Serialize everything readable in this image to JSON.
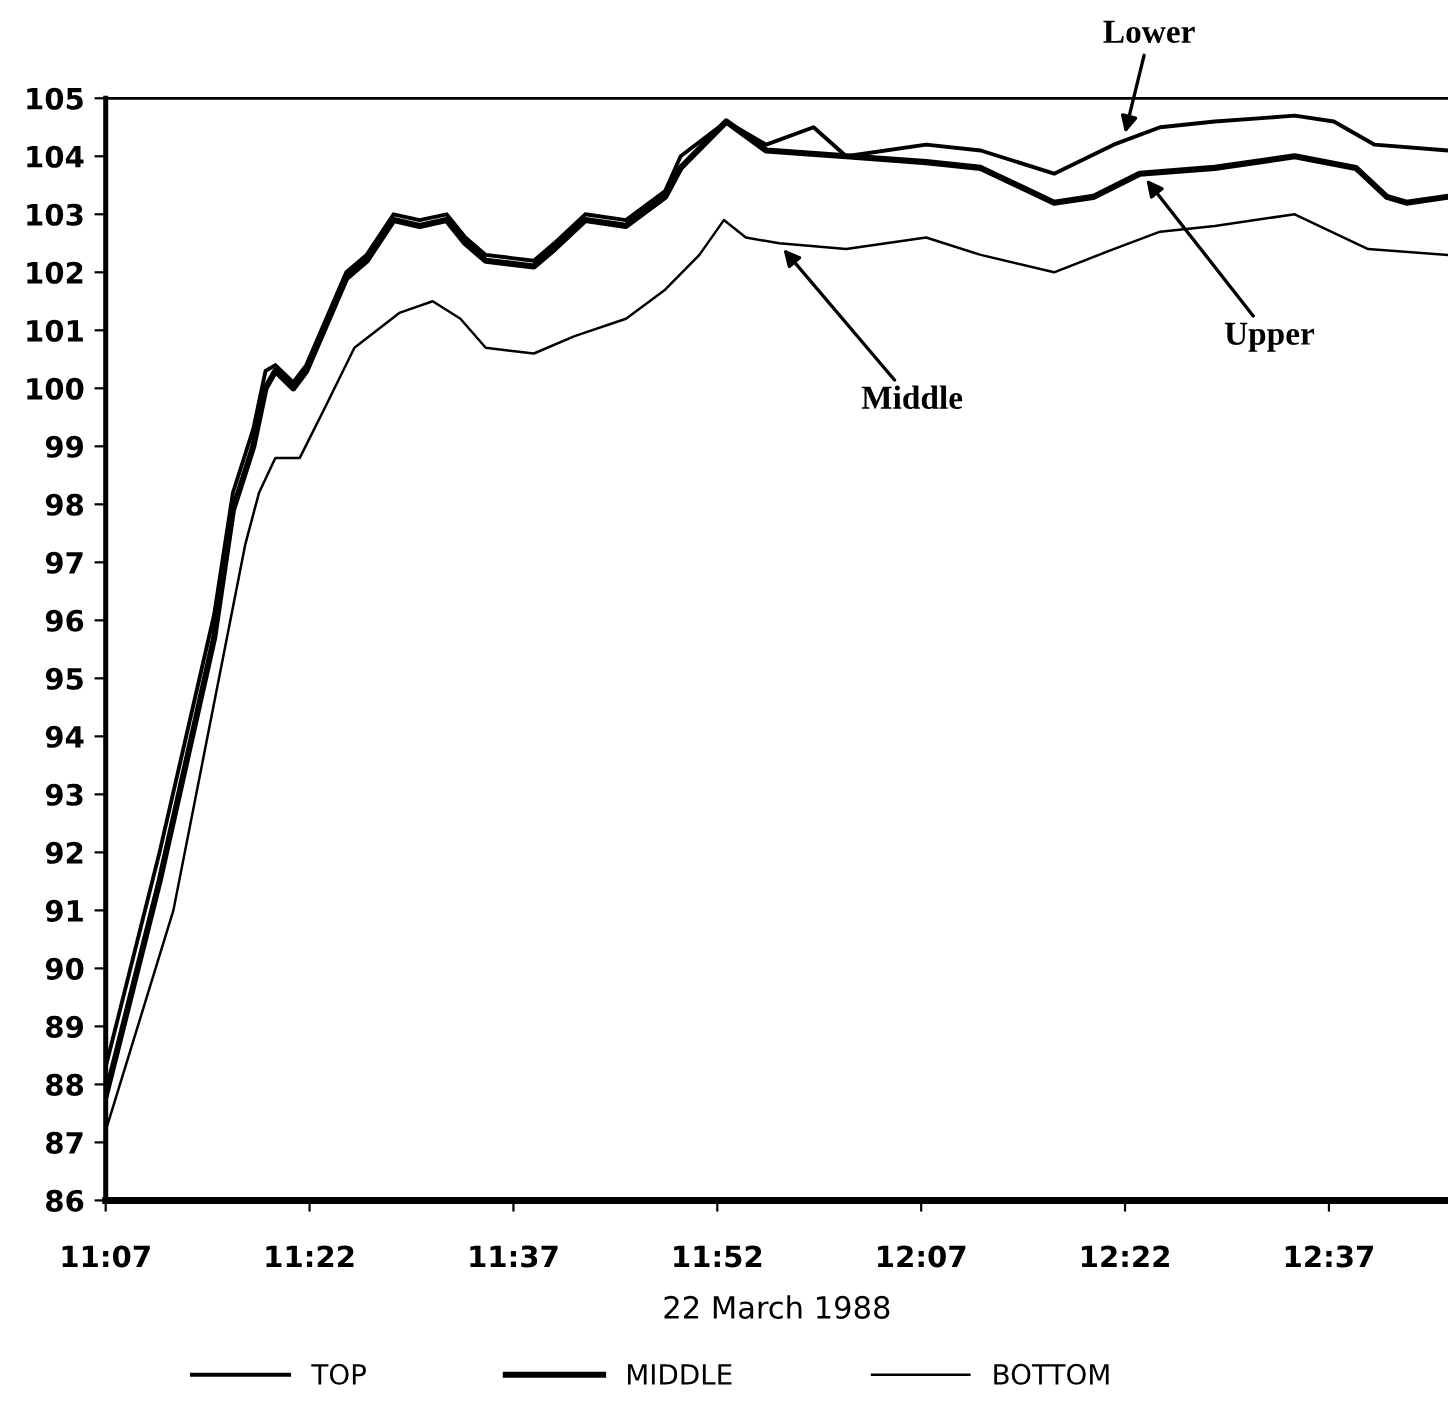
{
  "chart_data": {
    "type": "line",
    "xlabel": "22 March 1988",
    "xlim": [
      11.117,
      12.763
    ],
    "xticks": [
      {
        "value": 11.117,
        "label": "11:07"
      },
      {
        "value": 11.367,
        "label": "11:22"
      },
      {
        "value": 11.617,
        "label": "11:37"
      },
      {
        "value": 11.867,
        "label": "11:52"
      },
      {
        "value": 12.117,
        "label": "12:07"
      },
      {
        "value": 12.367,
        "label": "12:22"
      },
      {
        "value": 12.617,
        "label": "12:37"
      }
    ],
    "ylim": [
      86,
      105
    ],
    "yticks": [
      86,
      87,
      88,
      89,
      90,
      91,
      92,
      93,
      94,
      95,
      96,
      97,
      98,
      99,
      100,
      101,
      102,
      103,
      104,
      105
    ],
    "grid": false,
    "legend": "bottom",
    "marker": "none",
    "line_style": "solid",
    "series": [
      {
        "name": "TOP",
        "color": "#000000",
        "x": [
          11.117,
          11.183,
          11.25,
          11.273,
          11.298,
          11.313,
          11.325,
          11.347,
          11.363,
          11.412,
          11.437,
          11.47,
          11.502,
          11.535,
          11.558,
          11.583,
          11.642,
          11.667,
          11.705,
          11.755,
          11.803,
          11.822,
          11.878,
          11.927,
          11.985,
          12.025,
          12.123,
          12.19,
          12.28,
          12.353,
          12.41,
          12.477,
          12.575,
          12.623,
          12.673,
          12.762
        ],
        "values": [
          88.3,
          92.0,
          96.1,
          98.2,
          99.3,
          100.3,
          100.4,
          100.1,
          100.4,
          102.0,
          102.3,
          103.0,
          102.9,
          103.0,
          102.6,
          102.3,
          102.2,
          102.5,
          103.0,
          102.9,
          103.4,
          104.0,
          104.6,
          104.2,
          104.5,
          104.0,
          104.2,
          104.1,
          103.7,
          104.2,
          104.5,
          104.6,
          104.7,
          104.6,
          104.2,
          104.1
        ]
      },
      {
        "name": "MIDDLE",
        "color": "#000000",
        "x": [
          11.117,
          11.183,
          11.25,
          11.273,
          11.298,
          11.313,
          11.325,
          11.347,
          11.363,
          11.412,
          11.437,
          11.47,
          11.502,
          11.535,
          11.558,
          11.583,
          11.642,
          11.667,
          11.705,
          11.755,
          11.803,
          11.822,
          11.878,
          11.927,
          12.025,
          12.123,
          12.19,
          12.28,
          12.328,
          12.385,
          12.477,
          12.575,
          12.65,
          12.688,
          12.712,
          12.762
        ],
        "values": [
          87.8,
          91.5,
          95.7,
          97.9,
          99.0,
          100.0,
          100.3,
          100.0,
          100.3,
          101.9,
          102.2,
          102.9,
          102.8,
          102.9,
          102.5,
          102.2,
          102.1,
          102.4,
          102.9,
          102.8,
          103.3,
          103.8,
          104.6,
          104.1,
          104.0,
          103.9,
          103.8,
          103.2,
          103.3,
          103.7,
          103.8,
          104.0,
          103.8,
          103.3,
          103.2,
          103.3
        ]
      },
      {
        "name": "BOTTOM",
        "color": "#000000",
        "x": [
          11.117,
          11.2,
          11.288,
          11.305,
          11.325,
          11.355,
          11.387,
          11.422,
          11.477,
          11.518,
          11.552,
          11.583,
          11.642,
          11.692,
          11.755,
          11.803,
          11.845,
          11.875,
          11.902,
          11.943,
          12.025,
          12.123,
          12.19,
          12.28,
          12.353,
          12.41,
          12.477,
          12.575,
          12.665,
          12.762
        ],
        "values": [
          87.2,
          91.0,
          97.3,
          98.2,
          98.8,
          98.8,
          99.7,
          100.7,
          101.3,
          101.5,
          101.2,
          100.7,
          100.6,
          100.9,
          101.2,
          101.7,
          102.3,
          102.9,
          102.6,
          102.5,
          102.4,
          102.6,
          102.3,
          102.0,
          102.4,
          102.7,
          102.8,
          103.0,
          102.4,
          102.3
        ]
      }
    ],
    "annotations": [
      {
        "text": "Lower",
        "x": 12.367,
        "y": 104.4
      },
      {
        "text": "Upper",
        "x": 12.393,
        "y": 103.6
      },
      {
        "text": "Middle",
        "x": 11.948,
        "y": 102.4
      }
    ]
  }
}
